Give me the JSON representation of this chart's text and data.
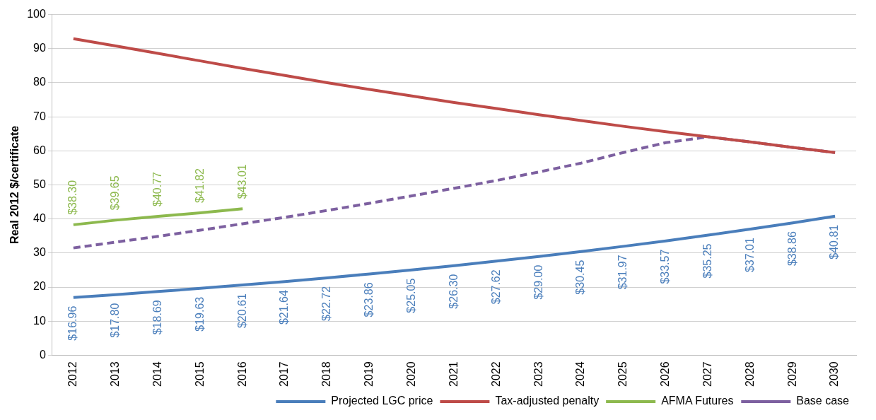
{
  "chart_data": {
    "type": "line",
    "ylabel": "Real 2012 $/certificate",
    "categories": [
      "2012",
      "2013",
      "2014",
      "2015",
      "2016",
      "2017",
      "2018",
      "2019",
      "2020",
      "2021",
      "2022",
      "2023",
      "2024",
      "2025",
      "2026",
      "2027",
      "2028",
      "2029",
      "2030"
    ],
    "ylim": [
      0,
      100
    ],
    "yticks": [
      0,
      10,
      20,
      30,
      40,
      50,
      60,
      70,
      80,
      90,
      100
    ],
    "grid": "y",
    "legend": "bottom right",
    "marker": "none",
    "series": [
      {
        "name": "Projected LGC price",
        "color": "#4a7ebb",
        "values": [
          16.96,
          17.8,
          18.69,
          19.63,
          20.61,
          21.64,
          22.72,
          23.86,
          25.05,
          26.3,
          27.62,
          29.0,
          30.45,
          31.97,
          33.57,
          35.25,
          37.01,
          38.86,
          40.81
        ],
        "value_labels": [
          "$16.96",
          "$17.80",
          "$18.69",
          "$19.63",
          "$20.61",
          "$21.64",
          "$22.72",
          "$23.86",
          "$25.05",
          "$26.30",
          "$27.62",
          "$29.00",
          "$30.45",
          "$31.97",
          "$33.57",
          "$35.25",
          "$37.01",
          "$38.86",
          "$40.81"
        ]
      },
      {
        "name": "Tax-adjusted penalty",
        "color": "#be4b48",
        "values": [
          92.9,
          90.8,
          88.6,
          86.4,
          84.2,
          82.1,
          80.0,
          78.0,
          76.1,
          74.2,
          72.4,
          70.6,
          68.9,
          67.2,
          65.6,
          64.1,
          62.6,
          61.0,
          59.5
        ]
      },
      {
        "name": "AFMA Futures",
        "color": "#8db94e",
        "values": [
          38.3,
          39.65,
          40.77,
          41.82,
          43.01,
          null,
          null,
          null,
          null,
          null,
          null,
          null,
          null,
          null,
          null,
          null,
          null,
          null,
          null
        ],
        "value_labels": [
          "$38.30",
          "$39.65",
          "$40.77",
          "$41.82",
          "$43.01",
          null,
          null,
          null,
          null,
          null,
          null,
          null,
          null,
          null,
          null,
          null,
          null,
          null,
          null
        ]
      },
      {
        "name": "Base case",
        "color": "#7d60a0",
        "line_style": "dashed",
        "values": [
          31.5,
          33.2,
          34.9,
          36.7,
          38.6,
          40.5,
          42.5,
          44.6,
          46.8,
          49.0,
          51.3,
          53.8,
          56.4,
          59.5,
          62.4,
          64.1,
          62.6,
          61.0,
          59.5
        ]
      }
    ]
  }
}
